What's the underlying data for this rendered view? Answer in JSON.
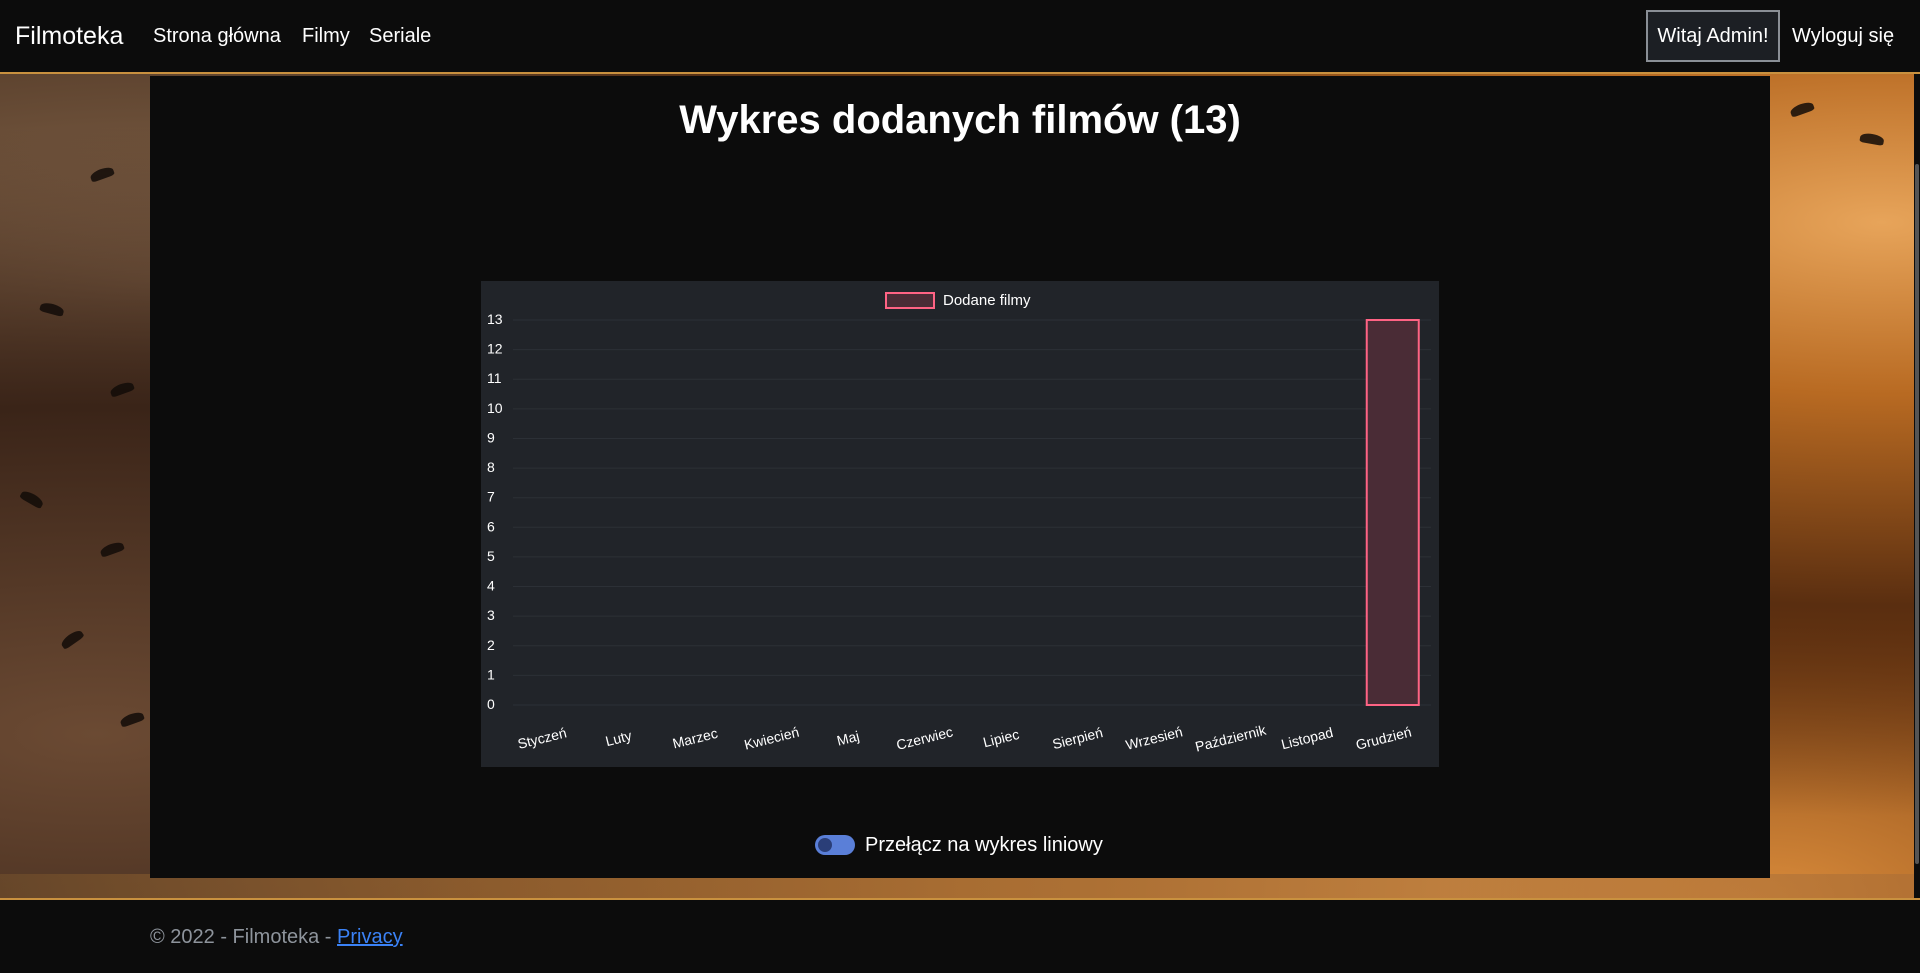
{
  "navbar": {
    "brand": "Filmoteka",
    "links": [
      "Strona główna",
      "Filmy",
      "Seriale"
    ],
    "welcome": "Witaj Admin!",
    "logout": "Wyloguj się"
  },
  "main": {
    "title": "Wykres dodanych filmów (13)",
    "toggle_label": "Przełącz na wykres liniowy"
  },
  "footer": {
    "copyright": "© 2022 - Filmoteka - ",
    "privacy": "Privacy"
  },
  "colors": {
    "accent_border": "#c9913f",
    "bar_fill": "#4a2c36",
    "bar_stroke": "#ff6384",
    "toggle": "#5a7fd8",
    "link": "#3b82f6"
  },
  "chart_data": {
    "type": "bar",
    "categories": [
      "Styczeń",
      "Luty",
      "Marzec",
      "Kwiecień",
      "Maj",
      "Czerwiec",
      "Lipiec",
      "Sierpień",
      "Wrzesień",
      "Październik",
      "Listopad",
      "Grudzień"
    ],
    "series": [
      {
        "name": "Dodane filmy",
        "values": [
          0,
          0,
          0,
          0,
          0,
          0,
          0,
          0,
          0,
          0,
          0,
          13
        ]
      }
    ],
    "yticks": [
      "0",
      "1",
      "2",
      "3",
      "4",
      "5",
      "6",
      "7",
      "8",
      "9",
      "10",
      "11",
      "12",
      "13"
    ],
    "ylim": [
      0,
      13
    ],
    "grid": true,
    "legend_position": "top"
  }
}
